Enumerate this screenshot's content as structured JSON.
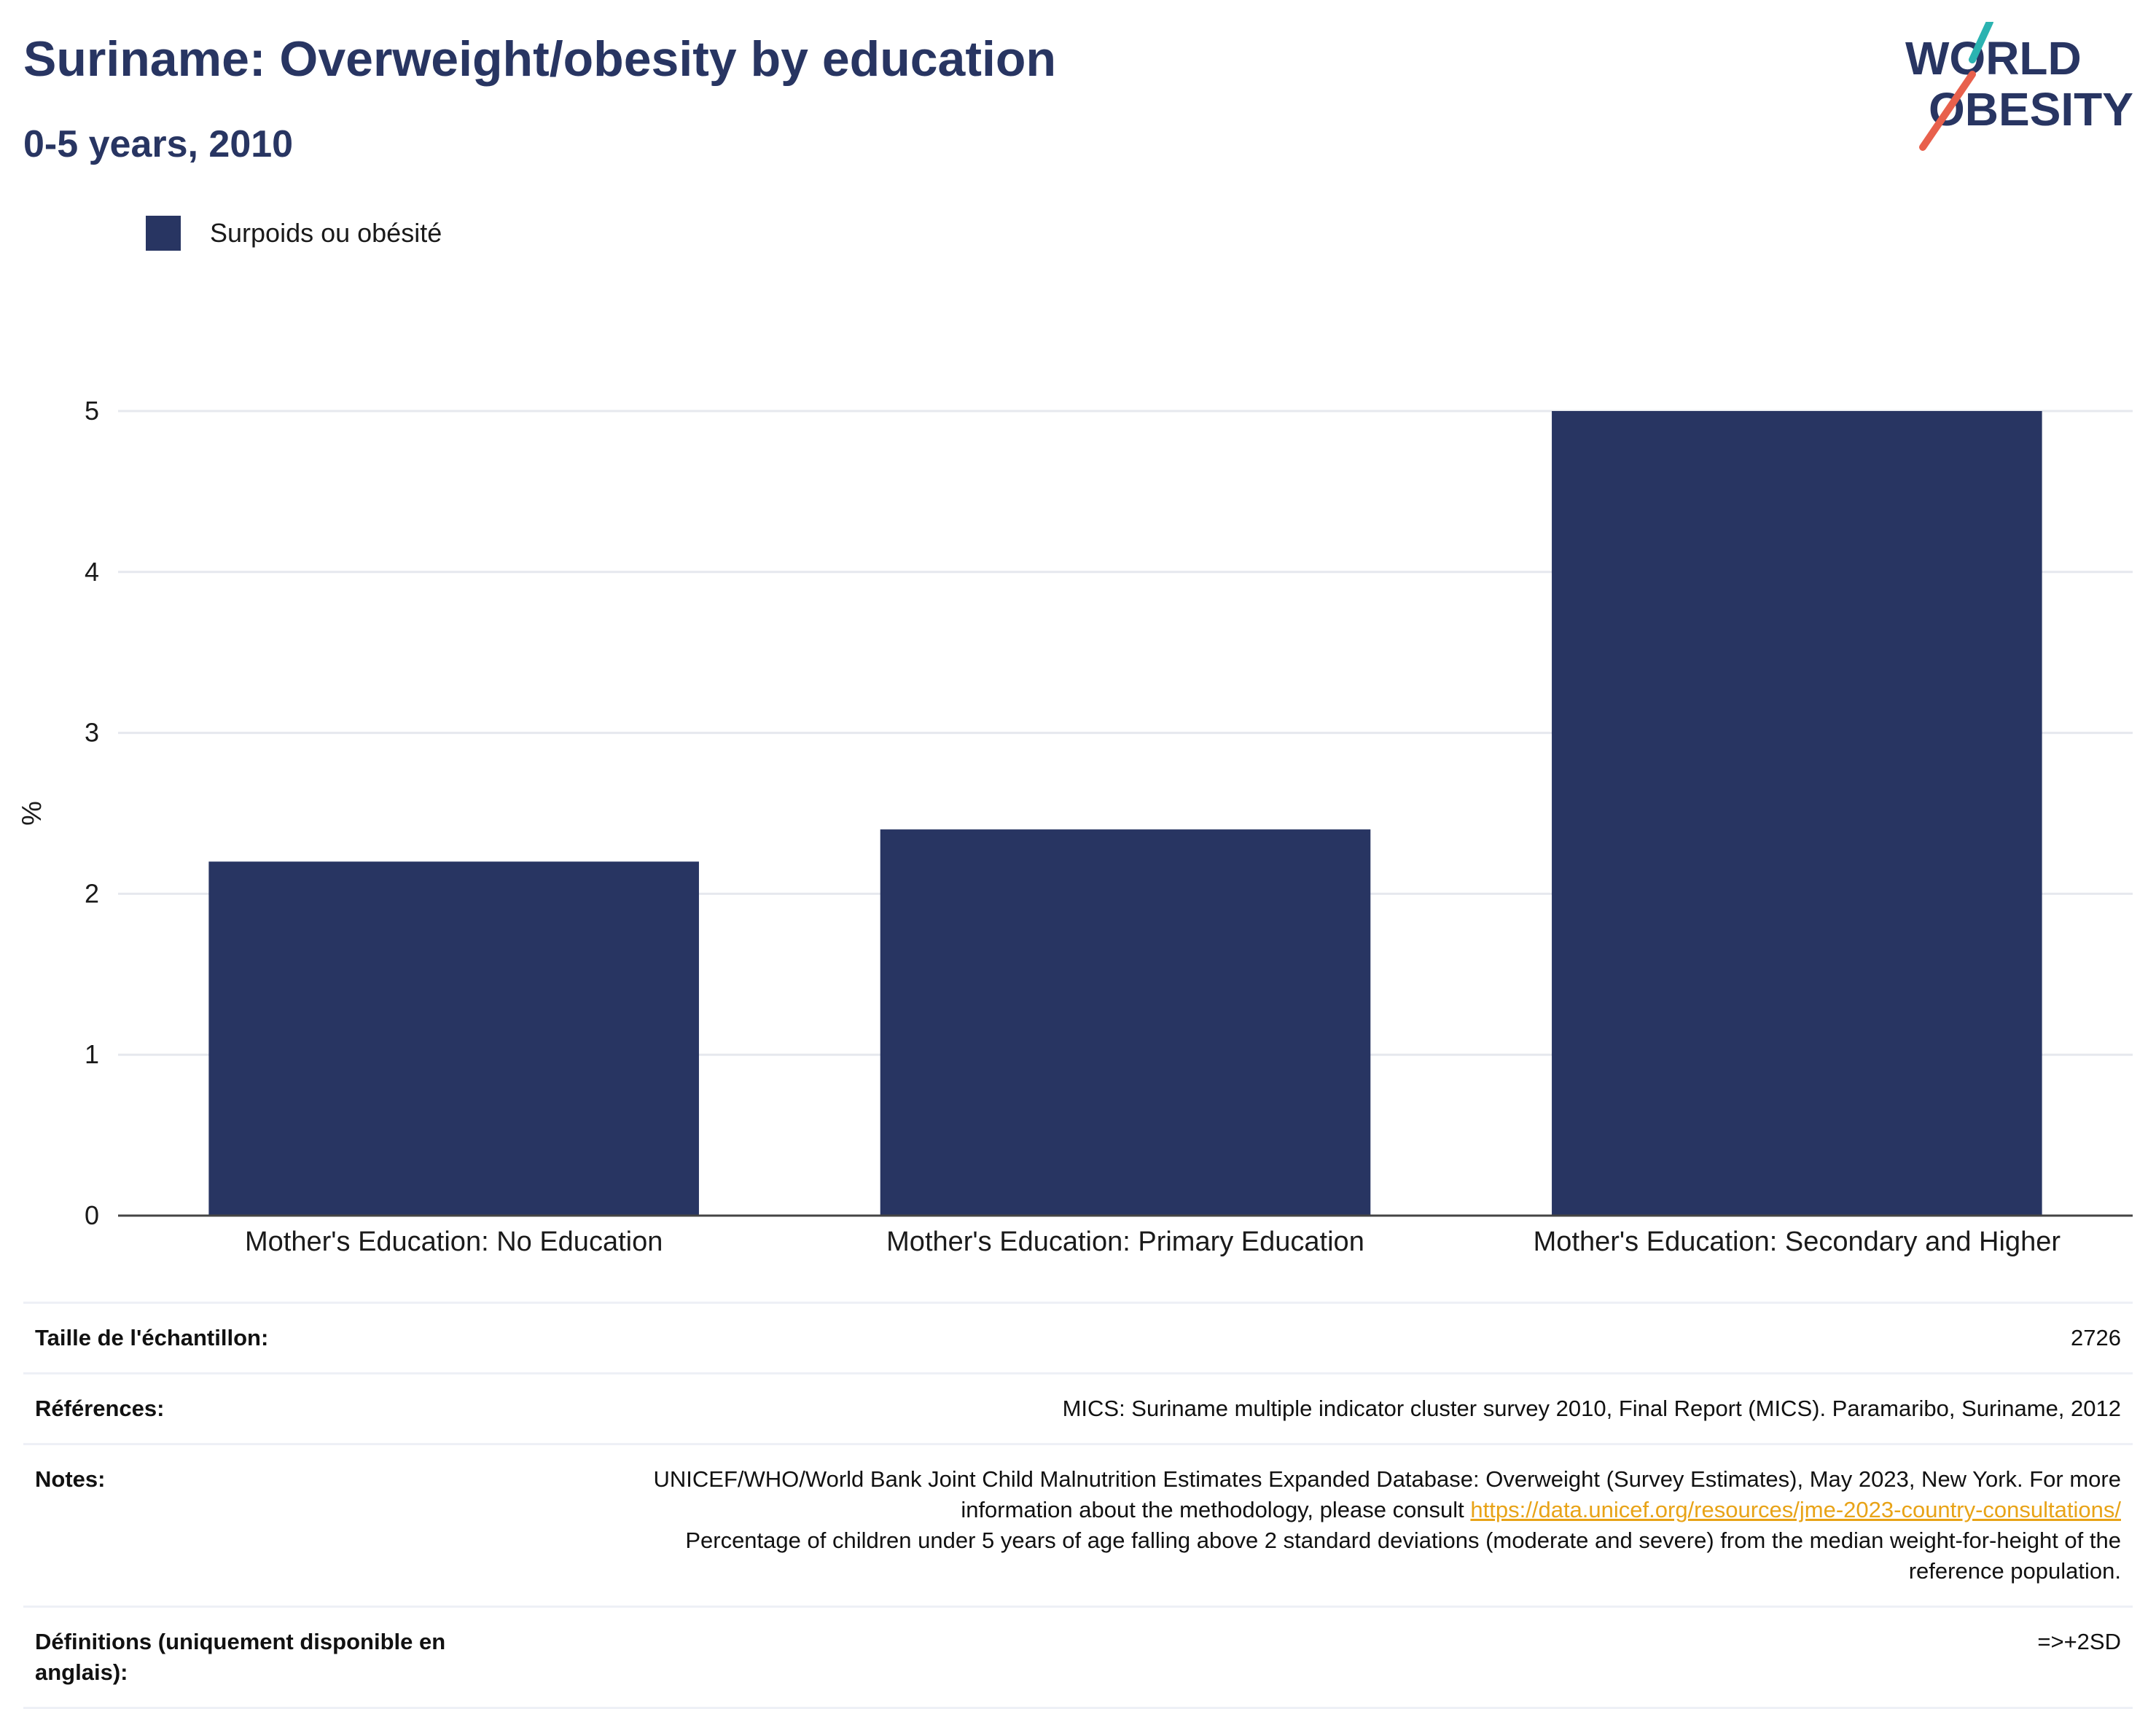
{
  "header": {
    "title": "Suriname: Overweight/obesity by education",
    "subtitle": "0-5 years, 2010"
  },
  "logo": {
    "line1": "WORLD",
    "line2": "OBESITY",
    "colors": {
      "text": "#283562",
      "teal": "#2bb3b1",
      "coral": "#e8604c"
    }
  },
  "legend": {
    "label": "Surpoids ou obésité",
    "color": "#283562"
  },
  "chart_data": {
    "type": "bar",
    "categories": [
      "Mother's Education: No Education",
      "Mother's Education: Primary Education",
      "Mother's Education: Secondary and Higher"
    ],
    "series": [
      {
        "name": "Surpoids ou obésité",
        "values": [
          2.2,
          2.4,
          5.0
        ],
        "color": "#283562"
      }
    ],
    "ylabel": "%",
    "xlabel": "",
    "ylim": [
      0,
      5
    ],
    "yticks": [
      0,
      1,
      2,
      3,
      4,
      5
    ],
    "grid": true,
    "legend_position": "top-left"
  },
  "info": {
    "sample_label": "Taille de l'échantillon:",
    "sample_value": "2726",
    "references_label": "Références:",
    "references_value": "MICS: Suriname multiple indicator cluster survey 2010, Final Report (MICS). Paramaribo, Suriname, 2012",
    "notes_label": "Notes:",
    "notes_text": "UNICEF/WHO/World Bank Joint Child Malnutrition Estimates Expanded Database: Overweight (Survey Estimates), May 2023, New York. For more information about the methodology, please consult",
    "notes_link": "https://data.unicef.org/resources/jme-2023-country-consultations/",
    "notes_text2": "Percentage of children under 5 years of age falling above 2 standard deviations (moderate and severe) from the median weight-for-height of the reference population.",
    "definitions_label": "Définitions (uniquement disponible en anglais):",
    "definitions_value": "=>+2SD"
  }
}
